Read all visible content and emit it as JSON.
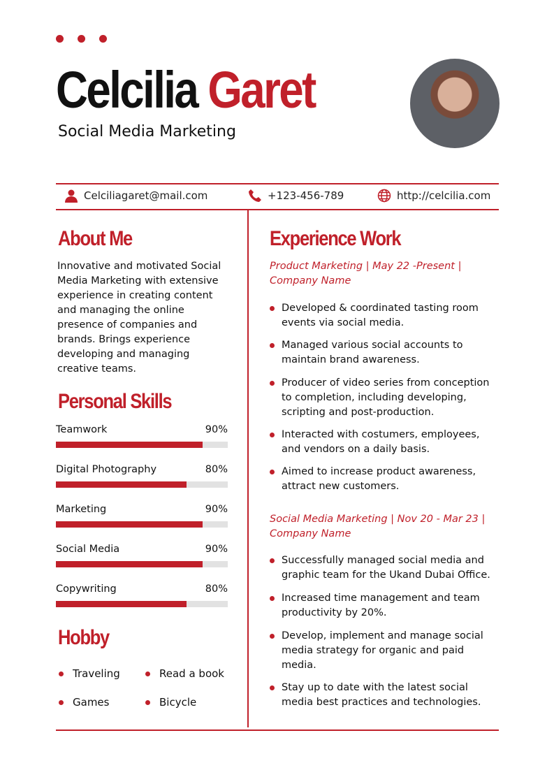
{
  "header": {
    "first_name": "Celcilia",
    "last_name": "Garet",
    "subtitle": "Social Media Marketing"
  },
  "contact": {
    "email": "Celciliagaret@mail.com",
    "phone": "+123-456-789",
    "website": "http://celcilia.com"
  },
  "about": {
    "title": "About Me",
    "text": "Innovative and motivated Social Media Marketing with extensive experience in creating content and managing the online presence of companies and brands. Brings experience developing and managing creative teams."
  },
  "skills": {
    "title": "Personal Skills",
    "items": [
      {
        "label": "Teamwork",
        "value": "90%",
        "level": 0.9
      },
      {
        "label": "Digital Photography",
        "value": "80%",
        "level": 0.8
      },
      {
        "label": "Marketing",
        "value": "90%",
        "level": 0.9
      },
      {
        "label": "Social Media",
        "value": "90%",
        "level": 0.9
      },
      {
        "label": "Copywriting",
        "value": "80%",
        "level": 0.8
      }
    ]
  },
  "hobby": {
    "title": "Hobby",
    "items": [
      "Traveling",
      "Read a book",
      "Games",
      "Bicycle"
    ]
  },
  "experience": {
    "title": "Experience Work",
    "jobs": [
      {
        "heading": "Product Marketing | May 22 -Present | Company Name",
        "bullets": [
          "Developed & coordinated tasting room events via social media.",
          "Managed various social accounts to maintain brand awareness.",
          "Producer of video series from conception to completion, including developing, scripting and post-production.",
          "Interacted with costumers, employees, and vendors on a daily basis.",
          "Aimed to increase product awareness, attract new customers."
        ]
      },
      {
        "heading": "Social Media Marketing | Nov 20 - Mar 23 | Company Name",
        "bullets": [
          "Successfully managed social media and graphic team for the Ukand Dubai Office.",
          "Increased time management and team productivity by 20%.",
          "Develop, implement and manage social media strategy for organic and paid media.",
          "Stay up to date with the latest social media best practices and technologies."
        ]
      }
    ]
  },
  "colors": {
    "accent": "#c0202a"
  }
}
